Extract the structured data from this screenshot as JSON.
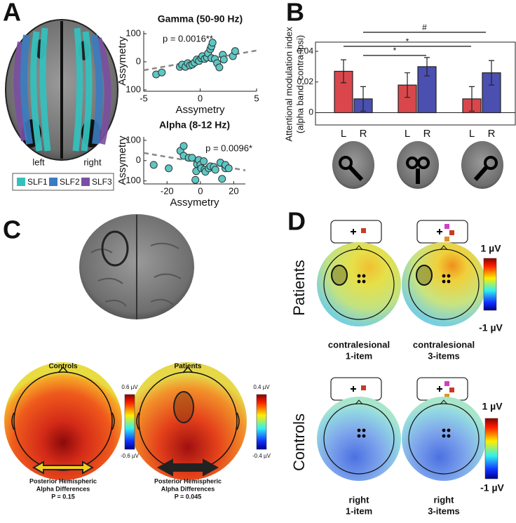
{
  "chart_data": [
    {
      "type": "scatter",
      "title": "Gamma (50-90 Hz)",
      "x_label": "Assymetry",
      "y_label": "Assymetry",
      "annotation": "p = 0.0016**",
      "color": "#5cc8c4",
      "x": [
        -3.9,
        -3.4,
        -1.8,
        -1.6,
        -1.3,
        -1.1,
        -0.9,
        -0.7,
        -0.5,
        -0.3,
        -0.1,
        0.1,
        0.2,
        0.4,
        0.6,
        0.7,
        0.9,
        1.0,
        1.1,
        1.0,
        1.3,
        1.5,
        1.7,
        2.0,
        2.1,
        2.9,
        3.1
      ],
      "y": [
        -45,
        -38,
        -18,
        -10,
        -18,
        -5,
        -13,
        -10,
        -3,
        8,
        3,
        13,
        20,
        10,
        15,
        30,
        45,
        55,
        68,
        13,
        10,
        -5,
        -20,
        25,
        8,
        20,
        38
      ],
      "trend_x": [
        -5,
        5
      ],
      "trend_y": [
        -30,
        40
      ],
      "xlim": [
        -5,
        5
      ],
      "ylim": [
        -105,
        110
      ],
      "xticks": [
        -5,
        0,
        5
      ],
      "yticks": [
        {
          "value": -100,
          "label": "100"
        },
        0,
        100
      ]
    },
    {
      "type": "scatter",
      "title": "Alpha (8-12 Hz)",
      "x_label": "Assymetry",
      "y_label": "Assymetry",
      "annotation": "p = 0.0096*",
      "color": "#5cc8c4",
      "x": [
        -28,
        -19,
        -12,
        -10,
        -10,
        -7,
        -5,
        -3,
        -2.5,
        -2,
        -1,
        0,
        0.5,
        2,
        2.5,
        3,
        5,
        6,
        8,
        9,
        12,
        13,
        15,
        15,
        17
      ],
      "y": [
        -21,
        -38,
        48,
        72,
        24,
        14,
        14,
        -95,
        -52,
        -17,
        3,
        -21,
        -38,
        -3,
        -45,
        -55,
        -38,
        -28,
        -31,
        -45,
        -10,
        -90,
        -38,
        -21,
        -38
      ],
      "trend_x": [
        -34,
        27
      ],
      "trend_y": [
        38,
        -48
      ],
      "xlim": [
        -34,
        27
      ],
      "ylim": [
        -115,
        117
      ],
      "xticks": [
        -20,
        0,
        20
      ],
      "yticks": [
        {
          "value": -100,
          "label": "100"
        },
        0,
        100
      ]
    },
    {
      "type": "bar",
      "y_label": [
        "Attentional modulation index",
        "(alpha band, contra-ipsi)"
      ],
      "categories": [
        "L",
        "R",
        "L",
        "R",
        "L",
        "R"
      ],
      "values": [
        0.027,
        0.009,
        0.018,
        0.03,
        0.009,
        0.026
      ],
      "errors": [
        0.0075,
        0.008,
        0.008,
        0.006,
        0.008,
        0.008
      ],
      "colors": [
        "#d9474c",
        "#4a4fb0",
        "#d9474c",
        "#4a4fb0",
        "#d9474c",
        "#4a4fb0"
      ],
      "annotations": [
        "#",
        "*",
        "*"
      ],
      "ylim": [
        -0.008,
        0.046
      ],
      "yticks": [
        0,
        0.02,
        0.04
      ]
    }
  ],
  "figure": {
    "panel_letters": [
      "A",
      "B",
      "C",
      "D"
    ],
    "hemispheres": [
      "left",
      "right"
    ],
    "tract_legend": [
      {
        "name": "SLF1",
        "color": "#35c0bd"
      },
      {
        "name": "SLF2",
        "color": "#3a7cc0"
      },
      {
        "name": "SLF3",
        "color": "#7a4fa0"
      }
    ],
    "panel_c": {
      "maps": [
        {
          "title": "Controls",
          "max": "0.6 µV",
          "min": "-0.6 µV",
          "caption": [
            "Posterior Hemispheric",
            "Alpha Differences",
            "P = 0.15"
          ]
        },
        {
          "title": "Patients",
          "max": "0.4 µV",
          "min": "-0.4 µV",
          "caption": [
            "Posterior Hemispheric",
            "Alpha Differences",
            "P = 0.045"
          ]
        }
      ]
    },
    "panel_d": {
      "rows": [
        {
          "label": "Patients",
          "max": "1 µV",
          "min": "-1 µV",
          "captions": [
            [
              "contralesional",
              "1-item"
            ],
            [
              "contralesional",
              "3-items"
            ]
          ]
        },
        {
          "label": "Controls",
          "max": "1 µV",
          "min": "-1 µV",
          "captions": [
            [
              "right",
              "1-item"
            ],
            [
              "right",
              "3-items"
            ]
          ]
        }
      ]
    }
  }
}
